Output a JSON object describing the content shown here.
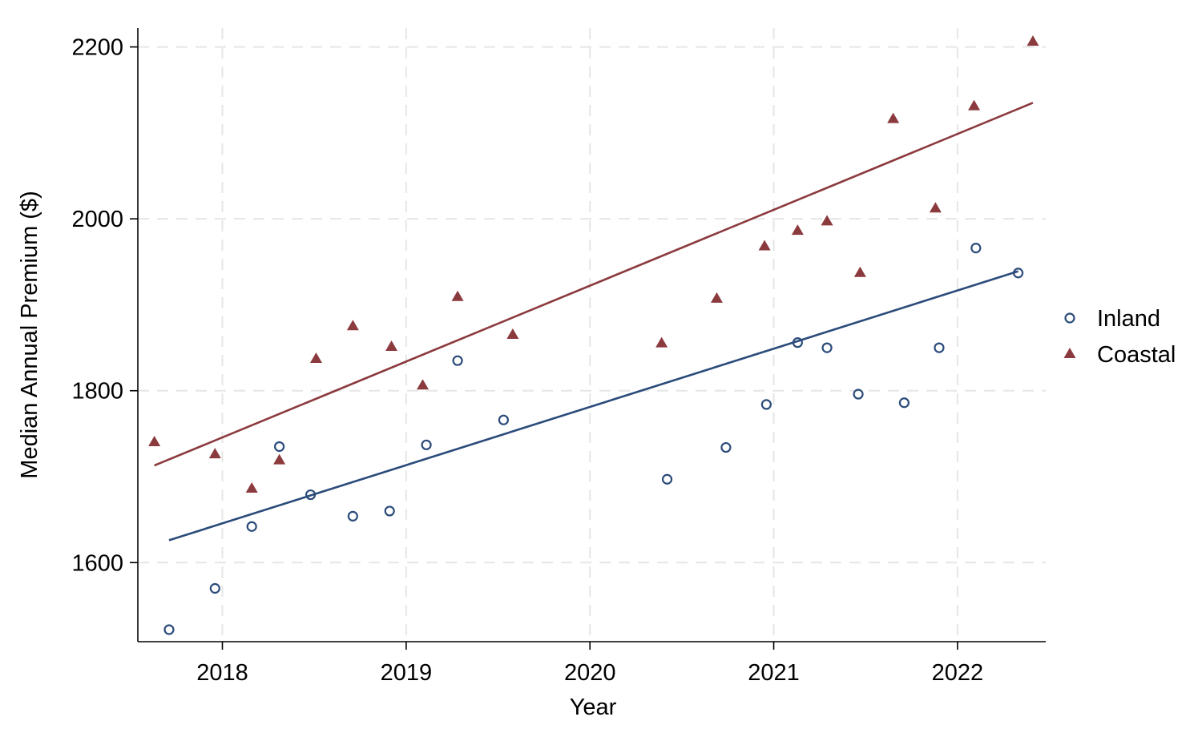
{
  "chart_data": {
    "type": "scatter",
    "title": "",
    "xlabel": "Year",
    "ylabel": "Median Annual Premium ($)",
    "xlim": [
      2017.54,
      2022.48
    ],
    "ylim": [
      1508,
      2222
    ],
    "xticks": [
      2018,
      2019,
      2020,
      2021,
      2022
    ],
    "yticks": [
      1600,
      1800,
      2000,
      2200
    ],
    "grid": true,
    "legend_position": "right",
    "series": [
      {
        "name": "Inland",
        "marker": "circle",
        "color": "#2b4b7a",
        "points": [
          {
            "x": 2017.71,
            "y": 1522
          },
          {
            "x": 2017.96,
            "y": 1570
          },
          {
            "x": 2018.16,
            "y": 1642
          },
          {
            "x": 2018.31,
            "y": 1735
          },
          {
            "x": 2018.48,
            "y": 1679
          },
          {
            "x": 2018.71,
            "y": 1654
          },
          {
            "x": 2018.91,
            "y": 1660
          },
          {
            "x": 2019.11,
            "y": 1737
          },
          {
            "x": 2019.28,
            "y": 1835
          },
          {
            "x": 2019.53,
            "y": 1766
          },
          {
            "x": 2020.42,
            "y": 1697
          },
          {
            "x": 2020.74,
            "y": 1734
          },
          {
            "x": 2020.96,
            "y": 1784
          },
          {
            "x": 2021.13,
            "y": 1856
          },
          {
            "x": 2021.29,
            "y": 1850
          },
          {
            "x": 2021.46,
            "y": 1796
          },
          {
            "x": 2021.71,
            "y": 1786
          },
          {
            "x": 2021.9,
            "y": 1850
          },
          {
            "x": 2022.1,
            "y": 1966
          },
          {
            "x": 2022.33,
            "y": 1937
          }
        ],
        "fit": {
          "x": [
            2017.71,
            2022.33
          ],
          "y": [
            1626,
            1939
          ]
        }
      },
      {
        "name": "Coastal",
        "marker": "triangle",
        "color": "#8b3a3e",
        "points": [
          {
            "x": 2017.63,
            "y": 1740
          },
          {
            "x": 2017.96,
            "y": 1726
          },
          {
            "x": 2018.16,
            "y": 1686
          },
          {
            "x": 2018.31,
            "y": 1719
          },
          {
            "x": 2018.51,
            "y": 1837
          },
          {
            "x": 2018.71,
            "y": 1875
          },
          {
            "x": 2018.92,
            "y": 1851
          },
          {
            "x": 2019.09,
            "y": 1806
          },
          {
            "x": 2019.28,
            "y": 1909
          },
          {
            "x": 2019.58,
            "y": 1865
          },
          {
            "x": 2020.39,
            "y": 1855
          },
          {
            "x": 2020.69,
            "y": 1907
          },
          {
            "x": 2020.95,
            "y": 1968
          },
          {
            "x": 2021.13,
            "y": 1986
          },
          {
            "x": 2021.29,
            "y": 1997
          },
          {
            "x": 2021.47,
            "y": 1937
          },
          {
            "x": 2021.65,
            "y": 2116
          },
          {
            "x": 2021.88,
            "y": 2012
          },
          {
            "x": 2022.09,
            "y": 2131
          },
          {
            "x": 2022.41,
            "y": 2206
          }
        ],
        "fit": {
          "x": [
            2017.63,
            2022.41
          ],
          "y": [
            1713,
            2135
          ]
        }
      }
    ]
  }
}
